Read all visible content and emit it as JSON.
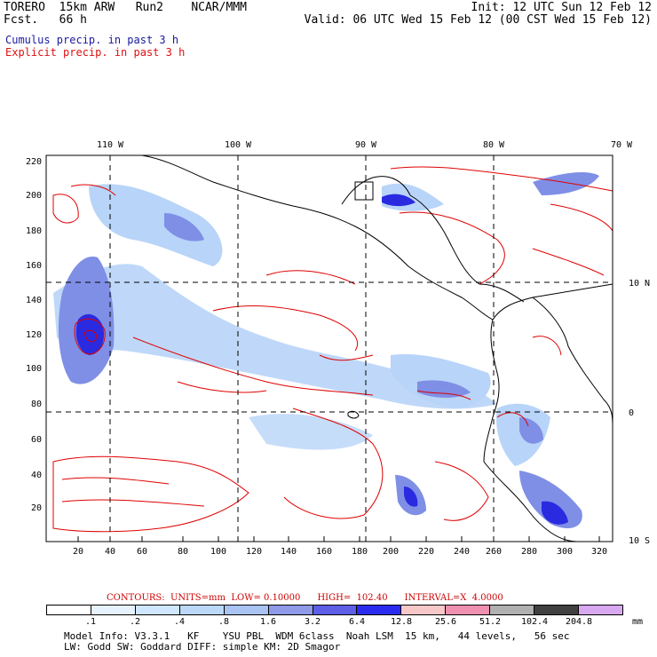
{
  "header": {
    "line1_left": "TORERO  15km ARW   Run2    NCAR/MMM",
    "line2_left": "Fcst.   66 h",
    "line1_right": "Init: 12 UTC Sun 12 Feb 12",
    "line2_right": "Valid: 06 UTC Wed 15 Feb 12 (00 CST Wed 15 Feb 12)"
  },
  "legend": {
    "cumulus": "Cumulus precip. in past 3 h",
    "explicit": "Explicit precip. in past 3 h"
  },
  "map": {
    "x_ticks": [
      "20",
      "40",
      "60",
      "80",
      "100",
      "120",
      "140",
      "160",
      "180",
      "200",
      "220",
      "240",
      "260",
      "280",
      "300",
      "320"
    ],
    "y_ticks": [
      "20",
      "40",
      "60",
      "80",
      "100",
      "120",
      "140",
      "160",
      "180",
      "200",
      "220"
    ],
    "lon_labels": [
      "110 W",
      "100 W",
      "90 W",
      "80 W",
      "70 W"
    ],
    "lat_labels": [
      "10 N",
      "0",
      "10 S"
    ],
    "colors": {
      "cumulus_light": "#b8d4f8",
      "cumulus_mid": "#7f8fe6",
      "cumulus_dark": "#2a2ae0",
      "explicit": "#e00000",
      "coast": "#000000",
      "grid": "#000000"
    }
  },
  "contours_note": "CONTOURS:  UNITS=mm  LOW= 0.10000      HIGH=  102.40      INTERVAL=X  4.0000",
  "colorbar": {
    "colors": [
      "#ffffff",
      "#e6f3ff",
      "#cfe6ff",
      "#bcd8f8",
      "#a9c3f3",
      "#8f9ae8",
      "#5e5ee6",
      "#2b2bf0",
      "#f8c8c8",
      "#f090b0",
      "#b0b0b0",
      "#404040",
      "#d8a8f0"
    ],
    "labels": [
      ".1",
      ".2",
      ".4",
      ".8",
      "1.6",
      "3.2",
      "6.4",
      "12.8",
      "25.6",
      "51.2",
      "102.4",
      "204.8"
    ],
    "unit": "mm"
  },
  "model_info": {
    "line1": "Model Info: V3.3.1   KF    YSU PBL  WDM 6class  Noah LSM  15 km,   44 levels,   56 sec",
    "line2": "LW: Godd SW: Goddard DIFF: simple KM: 2D Smagor"
  }
}
